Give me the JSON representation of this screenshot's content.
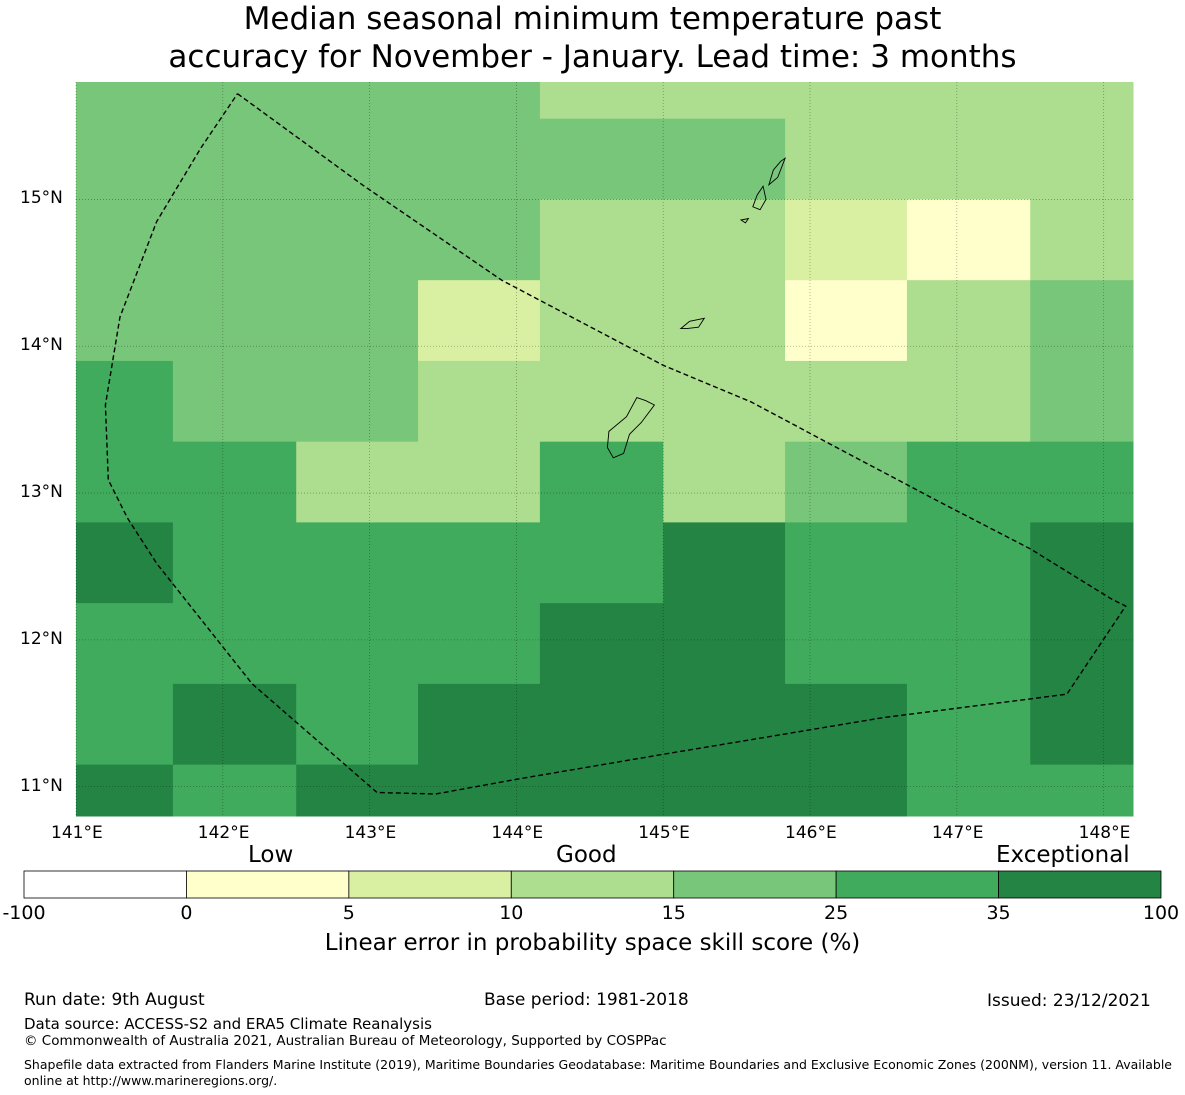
{
  "title": {
    "line1": "Median seasonal minimum temperature past",
    "line2": "accuracy for November - January. Lead time: 3 months"
  },
  "map": {
    "lon_ticks": [
      "141°E",
      "142°E",
      "143°E",
      "144°E",
      "145°E",
      "146°E",
      "147°E",
      "148°E"
    ],
    "lat_ticks": [
      "15°N",
      "14°N",
      "13°N",
      "12°N",
      "11°N"
    ],
    "lon_values": [
      141,
      142,
      143,
      144,
      145,
      146,
      147,
      148
    ],
    "lat_values": [
      15,
      14,
      13,
      12,
      11
    ],
    "extent": {
      "lon": [
        141.0,
        148.2
      ],
      "lat": [
        10.8,
        15.8
      ]
    },
    "grid_lon_edges": [
      141.0,
      141.66,
      142.5,
      143.33,
      144.16,
      145.0,
      145.83,
      146.66,
      147.5,
      148.2
    ],
    "grid_lat_edges": [
      15.8,
      15.55,
      15.0,
      14.45,
      13.9,
      13.35,
      12.8,
      12.25,
      11.7,
      11.15,
      10.8
    ],
    "skill_class_grid": [
      [
        4,
        4,
        4,
        4,
        3,
        3,
        3,
        3,
        3
      ],
      [
        4,
        4,
        4,
        4,
        4,
        4,
        3,
        3,
        3
      ],
      [
        4,
        4,
        4,
        4,
        3,
        3,
        2,
        1,
        3
      ],
      [
        4,
        4,
        4,
        2,
        3,
        3,
        1,
        3,
        4
      ],
      [
        5,
        4,
        4,
        3,
        3,
        3,
        3,
        3,
        4
      ],
      [
        5,
        5,
        3,
        3,
        5,
        3,
        4,
        5,
        5
      ],
      [
        6,
        5,
        5,
        5,
        5,
        6,
        5,
        5,
        6
      ],
      [
        5,
        5,
        5,
        5,
        6,
        6,
        5,
        5,
        6
      ],
      [
        5,
        6,
        5,
        6,
        6,
        6,
        6,
        5,
        6
      ],
      [
        6,
        5,
        6,
        6,
        6,
        6,
        6,
        5,
        5
      ]
    ],
    "boundary": [
      [
        142.1,
        15.72
      ],
      [
        142.95,
        15.1
      ],
      [
        143.9,
        14.45
      ],
      [
        145.0,
        13.87
      ],
      [
        145.6,
        13.62
      ],
      [
        146.2,
        13.3
      ],
      [
        146.9,
        12.93
      ],
      [
        147.5,
        12.62
      ],
      [
        148.05,
        12.28
      ],
      [
        148.15,
        12.23
      ],
      [
        147.75,
        11.63
      ],
      [
        146.5,
        11.47
      ],
      [
        145.0,
        11.22
      ],
      [
        144.0,
        11.05
      ],
      [
        143.45,
        10.95
      ],
      [
        143.05,
        10.96
      ],
      [
        142.2,
        11.7
      ],
      [
        141.55,
        12.52
      ],
      [
        141.35,
        12.83
      ],
      [
        141.22,
        13.09
      ],
      [
        141.2,
        13.6
      ],
      [
        141.3,
        14.2
      ],
      [
        141.55,
        14.85
      ],
      [
        141.85,
        15.35
      ],
      [
        142.1,
        15.72
      ]
    ],
    "islands": [
      [
        [
          144.66,
          13.24
        ],
        [
          144.62,
          13.31
        ],
        [
          144.63,
          13.42
        ],
        [
          144.75,
          13.52
        ],
        [
          144.82,
          13.65
        ],
        [
          144.88,
          13.63
        ],
        [
          144.94,
          13.6
        ],
        [
          144.85,
          13.48
        ],
        [
          144.77,
          13.4
        ],
        [
          144.73,
          13.27
        ],
        [
          144.66,
          13.24
        ]
      ],
      [
        [
          145.12,
          14.12
        ],
        [
          145.18,
          14.17
        ],
        [
          145.28,
          14.19
        ],
        [
          145.24,
          14.13
        ],
        [
          145.16,
          14.12
        ],
        [
          145.12,
          14.12
        ]
      ],
      [
        [
          145.61,
          14.95
        ],
        [
          145.64,
          15.03
        ],
        [
          145.68,
          15.09
        ],
        [
          145.7,
          15.0
        ],
        [
          145.66,
          14.93
        ],
        [
          145.61,
          14.95
        ]
      ],
      [
        [
          145.72,
          15.1
        ],
        [
          145.75,
          15.2
        ],
        [
          145.8,
          15.26
        ],
        [
          145.83,
          15.28
        ],
        [
          145.78,
          15.15
        ],
        [
          145.72,
          15.1
        ]
      ],
      [
        [
          145.53,
          14.86
        ],
        [
          145.58,
          14.87
        ],
        [
          145.56,
          14.84
        ],
        [
          145.53,
          14.86
        ]
      ]
    ]
  },
  "colorbar": {
    "category_low": "Low",
    "category_good": "Good",
    "category_exceptional": "Exceptional",
    "ticks": [
      "-100",
      "0",
      "5",
      "10",
      "15",
      "25",
      "35",
      "100"
    ],
    "colors": [
      "#ffffff",
      "#ffffcc",
      "#d9f0a3",
      "#addd8e",
      "#78c679",
      "#41ab5d",
      "#238443"
    ],
    "label": "Linear error in probability space skill score (%)"
  },
  "footer": {
    "run_date": "Run date: 9th August",
    "base_period": "Base period: 1981-2018",
    "issued": "Issued: 23/12/2021",
    "data_source": "Data source: ACCESS-S2 and ERA5 Climate Reanalysis",
    "copyright": "© Commonwealth of Australia 2021, Australian Bureau of Meteorology, Supported by COSPPac",
    "shapefile": "Shapefile data extracted from Flanders Marine Institute (2019), Maritime Boundaries Geodatabase: Maritime Boundaries and Exclusive Economic Zones (200NM), version 11. Available online at http://www.marineregions.org/."
  }
}
